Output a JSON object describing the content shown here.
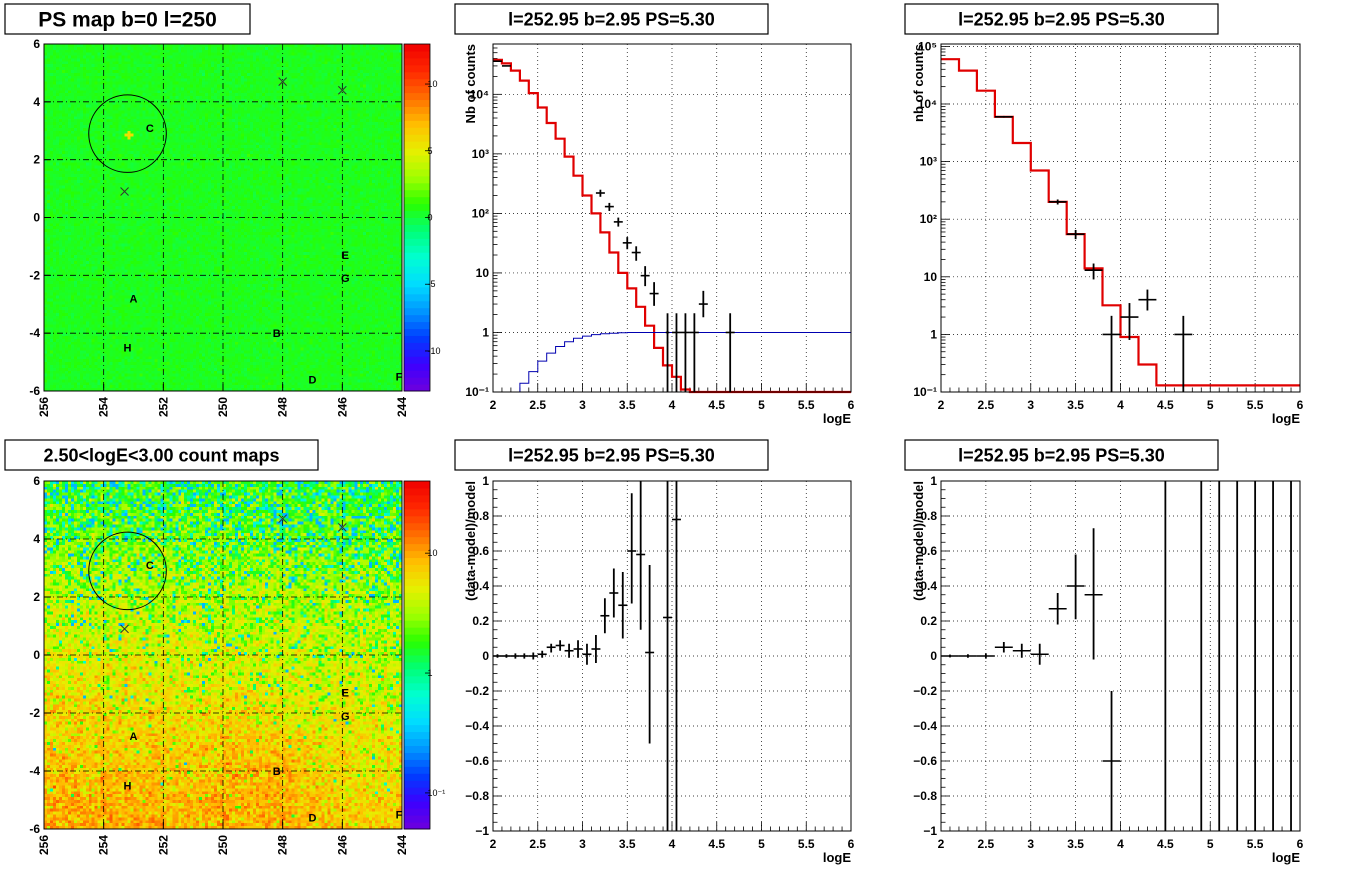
{
  "chart_data": [
    {
      "id": "ps_map",
      "type": "heatmap",
      "title": "PS map b=0 l=250",
      "x_ticks": [
        "256",
        "254",
        "252",
        "250",
        "248",
        "246",
        "244"
      ],
      "y_ticks": [
        "6",
        "4",
        "2",
        "0",
        "-2",
        "-4",
        "-6"
      ],
      "xlim": [
        256,
        244
      ],
      "ylim": [
        -6,
        6
      ],
      "grid": true,
      "colorbar_ticks": [
        "10",
        "5",
        "0",
        "-5",
        "-10"
      ],
      "colorbar_range": [
        -13,
        13
      ],
      "base_value": 0.5,
      "circle": {
        "l": 253.2,
        "b": 2.9,
        "r": 0.5
      },
      "crosses": [
        {
          "l": 248.0,
          "b": 4.7
        },
        {
          "l": 246.0,
          "b": 4.4
        },
        {
          "l": 253.3,
          "b": 0.9
        }
      ],
      "sources": [
        {
          "name": "C",
          "l": 252.45,
          "b": 3.1
        },
        {
          "name": "E",
          "l": 245.9,
          "b": -1.3
        },
        {
          "name": "G",
          "l": 245.9,
          "b": -2.1
        },
        {
          "name": "A",
          "l": 253.0,
          "b": -2.8
        },
        {
          "name": "B",
          "l": 248.2,
          "b": -4.0
        },
        {
          "name": "H",
          "l": 253.2,
          "b": -4.5
        },
        {
          "name": "D",
          "l": 247.0,
          "b": -5.6
        },
        {
          "name": "F",
          "l": 244.1,
          "b": -5.5
        }
      ]
    },
    {
      "id": "count_map",
      "type": "heatmap",
      "title": "2.50<logE<3.00 count maps",
      "x_ticks": [
        "256",
        "254",
        "252",
        "250",
        "248",
        "246",
        "244"
      ],
      "y_ticks": [
        "6",
        "4",
        "2",
        "0",
        "-2",
        "-4",
        "-6"
      ],
      "xlim": [
        256,
        244
      ],
      "ylim": [
        -6,
        6
      ],
      "grid": true,
      "colorbar_ticks": [
        "10",
        "1",
        "10⁻¹"
      ],
      "colorbar_log": true,
      "colorbar_range": [
        0.05,
        40
      ],
      "circle": {
        "l": 253.2,
        "b": 2.9,
        "r": 0.5
      },
      "crosses": [
        {
          "l": 248.0,
          "b": 4.7
        },
        {
          "l": 246.0,
          "b": 4.4
        },
        {
          "l": 253.3,
          "b": 0.9
        }
      ],
      "sources": [
        {
          "name": "C",
          "l": 252.45,
          "b": 3.1
        },
        {
          "name": "E",
          "l": 245.9,
          "b": -1.3
        },
        {
          "name": "G",
          "l": 245.9,
          "b": -2.1
        },
        {
          "name": "A",
          "l": 253.0,
          "b": -2.8
        },
        {
          "name": "B",
          "l": 248.2,
          "b": -4.0
        },
        {
          "name": "H",
          "l": 253.2,
          "b": -4.5
        },
        {
          "name": "D",
          "l": 247.0,
          "b": -5.6
        },
        {
          "name": "F",
          "l": 244.1,
          "b": -5.5
        }
      ]
    },
    {
      "id": "spec1",
      "type": "line",
      "title": "l=252.95 b=2.95 PS=5.30",
      "xlabel": "logE",
      "ylabel": "Nb of counts",
      "xlim": [
        2,
        6
      ],
      "ylog": true,
      "ylim": [
        0.1,
        70000
      ],
      "x_ticks": [
        "2",
        "2.5",
        "3",
        "3.5",
        "4",
        "4.5",
        "5",
        "5.5",
        "6"
      ],
      "y_ticks": [
        {
          "v": 0.1,
          "t": "10⁻¹"
        },
        {
          "v": 1,
          "t": "1"
        },
        {
          "v": 10,
          "t": "10"
        },
        {
          "v": 100,
          "t": "10²"
        },
        {
          "v": 1000,
          "t": "10³"
        },
        {
          "v": 10000,
          "t": "10⁴"
        }
      ],
      "grid": true,
      "series": [
        {
          "kind": "step",
          "color": "#e00000",
          "width": 2.2,
          "edges": [
            2,
            2.1,
            2.2,
            2.3,
            2.4,
            2.5,
            2.6,
            2.7,
            2.8,
            2.9,
            3.0,
            3.1,
            3.2,
            3.3,
            3.4,
            3.5,
            3.6,
            3.7,
            3.8,
            3.9,
            4.0,
            4.1,
            4.2,
            4.3,
            6.0
          ],
          "values": [
            38000,
            33000,
            25000,
            17000,
            10500,
            6000,
            3300,
            1800,
            900,
            430,
            200,
            100,
            48,
            22,
            10,
            5.5,
            2.7,
            1.3,
            0.55,
            0.28,
            0.18,
            0.11,
            0.1,
            0.1
          ]
        },
        {
          "kind": "step",
          "color": "#0000b0",
          "width": 1,
          "edges": [
            2,
            2.3,
            2.4,
            2.5,
            2.6,
            2.7,
            2.8,
            2.9,
            3.0,
            3.1,
            3.2,
            3.3,
            3.4,
            3.5,
            3.6,
            6.0
          ],
          "values": [
            0.1,
            0.14,
            0.22,
            0.33,
            0.45,
            0.58,
            0.7,
            0.8,
            0.87,
            0.92,
            0.95,
            0.97,
            0.99,
            1.0,
            1.0
          ]
        },
        {
          "kind": "errors",
          "color": "#000",
          "points": [
            {
              "x": 2.05,
              "xe": 0.05,
              "y": 36000,
              "lo": 35600,
              "hi": 36400
            },
            {
              "x": 2.15,
              "xe": 0.05,
              "y": 30000,
              "lo": 29600,
              "hi": 30400
            },
            {
              "x": 3.2,
              "xe": 0.05,
              "y": 220,
              "lo": 190,
              "hi": 250
            },
            {
              "x": 3.3,
              "xe": 0.05,
              "y": 130,
              "lo": 110,
              "hi": 150
            },
            {
              "x": 3.4,
              "xe": 0.05,
              "y": 72,
              "lo": 60,
              "hi": 85
            },
            {
              "x": 3.5,
              "xe": 0.05,
              "y": 32,
              "lo": 25,
              "hi": 40
            },
            {
              "x": 3.6,
              "xe": 0.05,
              "y": 22,
              "lo": 16,
              "hi": 28
            },
            {
              "x": 3.7,
              "xe": 0.05,
              "y": 9,
              "lo": 6,
              "hi": 13
            },
            {
              "x": 3.8,
              "xe": 0.05,
              "y": 4.5,
              "lo": 2.8,
              "hi": 7
            },
            {
              "x": 3.95,
              "xe": 0.02,
              "y": 1,
              "lo": 0.1,
              "hi": 2.1
            },
            {
              "x": 4.05,
              "xe": 0.05,
              "y": 1,
              "lo": 0.1,
              "hi": 2.1
            },
            {
              "x": 4.15,
              "xe": 0.05,
              "y": 1,
              "lo": 0.1,
              "hi": 2.1
            },
            {
              "x": 4.25,
              "xe": 0.05,
              "y": 1,
              "lo": 0.1,
              "hi": 2.1
            },
            {
              "x": 4.35,
              "xe": 0.05,
              "y": 3,
              "lo": 1.8,
              "hi": 5
            },
            {
              "x": 4.65,
              "xe": 0.05,
              "y": 1,
              "lo": 0.1,
              "hi": 2.1
            }
          ]
        }
      ]
    },
    {
      "id": "spec2",
      "type": "line",
      "title": "l=252.95 b=2.95 PS=5.30",
      "xlabel": "logE",
      "ylabel": "nb of counts",
      "xlim": [
        2,
        6
      ],
      "ylog": true,
      "ylim": [
        0.1,
        110000
      ],
      "x_ticks": [
        "2",
        "2.5",
        "3",
        "3.5",
        "4",
        "4.5",
        "5",
        "5.5",
        "6"
      ],
      "y_ticks": [
        {
          "v": 0.1,
          "t": "10⁻¹"
        },
        {
          "v": 1,
          "t": "1"
        },
        {
          "v": 10,
          "t": "10"
        },
        {
          "v": 100,
          "t": "10²"
        },
        {
          "v": 1000,
          "t": "10³"
        },
        {
          "v": 10000,
          "t": "10⁴"
        },
        {
          "v": 100000,
          "t": "10⁵"
        }
      ],
      "grid": true,
      "series": [
        {
          "kind": "step",
          "color": "#e00000",
          "width": 2.2,
          "edges": [
            2,
            2.2,
            2.4,
            2.6,
            2.8,
            3.0,
            3.2,
            3.4,
            3.6,
            3.8,
            4.0,
            4.2,
            4.4,
            6.0
          ],
          "values": [
            60000,
            38000,
            17000,
            6000,
            2100,
            700,
            200,
            55,
            14,
            3.2,
            0.9,
            0.3,
            0.13
          ]
        },
        {
          "kind": "errors",
          "color": "#000",
          "points": [
            {
              "x": 2.7,
              "xe": 0.1,
              "y": 6000,
              "lo": 5800,
              "hi": 6200
            },
            {
              "x": 3.3,
              "xe": 0.1,
              "y": 200,
              "lo": 180,
              "hi": 220
            },
            {
              "x": 3.5,
              "xe": 0.1,
              "y": 55,
              "lo": 45,
              "hi": 65
            },
            {
              "x": 3.7,
              "xe": 0.1,
              "y": 13,
              "lo": 9,
              "hi": 17
            },
            {
              "x": 3.9,
              "xe": 0.1,
              "y": 1,
              "lo": 0.1,
              "hi": 2.1
            },
            {
              "x": 4.1,
              "xe": 0.1,
              "y": 2,
              "lo": 0.8,
              "hi": 3.5
            },
            {
              "x": 4.3,
              "xe": 0.1,
              "y": 4,
              "lo": 2.6,
              "hi": 6
            },
            {
              "x": 4.7,
              "xe": 0.1,
              "y": 1,
              "lo": 0.1,
              "hi": 2.1
            }
          ]
        }
      ]
    },
    {
      "id": "ratio1",
      "type": "scatter",
      "title": "l=252.95 b=2.95 PS=5.30",
      "xlabel": "logE",
      "ylabel": "(data-model)/model",
      "xlim": [
        2,
        6
      ],
      "ylim": [
        -1,
        1
      ],
      "x_ticks": [
        "2",
        "2.5",
        "3",
        "3.5",
        "4",
        "4.5",
        "5",
        "5.5",
        "6"
      ],
      "y_ticks": [
        {
          "v": -1,
          "t": "−1"
        },
        {
          "v": -0.8,
          "t": "−0.8"
        },
        {
          "v": -0.6,
          "t": "−0.6"
        },
        {
          "v": -0.4,
          "t": "−0.4"
        },
        {
          "v": -0.2,
          "t": "−0.2"
        },
        {
          "v": 0,
          "t": "0"
        },
        {
          "v": 0.2,
          "t": "0.2"
        },
        {
          "v": 0.4,
          "t": "0.4"
        },
        {
          "v": 0.6,
          "t": "0.6"
        },
        {
          "v": 0.8,
          "t": "0.8"
        },
        {
          "v": 1,
          "t": "1"
        }
      ],
      "grid": true,
      "series": [
        {
          "kind": "errors",
          "color": "#000",
          "points": [
            {
              "x": 2.05,
              "xe": 0.05,
              "y": 0,
              "lo": -0.01,
              "hi": 0.01
            },
            {
              "x": 2.15,
              "xe": 0.05,
              "y": 0,
              "lo": -0.01,
              "hi": 0.01
            },
            {
              "x": 2.25,
              "xe": 0.05,
              "y": 0,
              "lo": -0.015,
              "hi": 0.015
            },
            {
              "x": 2.35,
              "xe": 0.05,
              "y": 0,
              "lo": -0.015,
              "hi": 0.015
            },
            {
              "x": 2.45,
              "xe": 0.05,
              "y": 0,
              "lo": -0.02,
              "hi": 0.02
            },
            {
              "x": 2.55,
              "xe": 0.05,
              "y": 0.01,
              "lo": -0.01,
              "hi": 0.03
            },
            {
              "x": 2.65,
              "xe": 0.05,
              "y": 0.05,
              "lo": 0.02,
              "hi": 0.07
            },
            {
              "x": 2.75,
              "xe": 0.05,
              "y": 0.06,
              "lo": 0.03,
              "hi": 0.09
            },
            {
              "x": 2.85,
              "xe": 0.05,
              "y": 0.03,
              "lo": -0.01,
              "hi": 0.07
            },
            {
              "x": 2.95,
              "xe": 0.05,
              "y": 0.04,
              "lo": -0.01,
              "hi": 0.09
            },
            {
              "x": 3.05,
              "xe": 0.05,
              "y": 0.01,
              "lo": -0.05,
              "hi": 0.07
            },
            {
              "x": 3.15,
              "xe": 0.05,
              "y": 0.04,
              "lo": -0.04,
              "hi": 0.12
            },
            {
              "x": 3.25,
              "xe": 0.05,
              "y": 0.23,
              "lo": 0.13,
              "hi": 0.33
            },
            {
              "x": 3.35,
              "xe": 0.05,
              "y": 0.36,
              "lo": 0.22,
              "hi": 0.5
            },
            {
              "x": 3.45,
              "xe": 0.05,
              "y": 0.29,
              "lo": 0.1,
              "hi": 0.48
            },
            {
              "x": 3.55,
              "xe": 0.05,
              "y": 0.6,
              "lo": 0.3,
              "hi": 0.93
            },
            {
              "x": 3.65,
              "xe": 0.05,
              "y": 0.58,
              "lo": 0.15,
              "hi": 1.0
            },
            {
              "x": 3.75,
              "xe": 0.05,
              "y": 0.02,
              "lo": -0.5,
              "hi": 0.52
            },
            {
              "x": 3.95,
              "xe": 0.05,
              "y": 0.22,
              "lo": -1.0,
              "hi": 1.0
            },
            {
              "x": 4.05,
              "xe": 0.05,
              "y": 0.78,
              "lo": -1.0,
              "hi": 1.0
            }
          ]
        }
      ]
    },
    {
      "id": "ratio2",
      "type": "scatter",
      "title": "l=252.95 b=2.95 PS=5.30",
      "xlabel": "logE",
      "ylabel": "(data-model)/model",
      "xlim": [
        2,
        6
      ],
      "ylim": [
        -1,
        1
      ],
      "x_ticks": [
        "2",
        "2.5",
        "3",
        "3.5",
        "4",
        "4.5",
        "5",
        "5.5",
        "6"
      ],
      "y_ticks": [
        {
          "v": -1,
          "t": "−1"
        },
        {
          "v": -0.8,
          "t": "−0.8"
        },
        {
          "v": -0.6,
          "t": "−0.6"
        },
        {
          "v": -0.4,
          "t": "−0.4"
        },
        {
          "v": -0.2,
          "t": "−0.2"
        },
        {
          "v": 0,
          "t": "0"
        },
        {
          "v": 0.2,
          "t": "0.2"
        },
        {
          "v": 0.4,
          "t": "0.4"
        },
        {
          "v": 0.6,
          "t": "0.6"
        },
        {
          "v": 0.8,
          "t": "0.8"
        },
        {
          "v": 1,
          "t": "1"
        }
      ],
      "grid": true,
      "series": [
        {
          "kind": "errors",
          "color": "#000",
          "points": [
            {
              "x": 2.1,
              "xe": 0.1,
              "y": 0,
              "lo": -0.008,
              "hi": 0.008
            },
            {
              "x": 2.3,
              "xe": 0.1,
              "y": 0,
              "lo": -0.01,
              "hi": 0.01
            },
            {
              "x": 2.5,
              "xe": 0.1,
              "y": 0,
              "lo": -0.015,
              "hi": 0.015
            },
            {
              "x": 2.7,
              "xe": 0.1,
              "y": 0.05,
              "lo": 0.02,
              "hi": 0.08
            },
            {
              "x": 2.9,
              "xe": 0.1,
              "y": 0.03,
              "lo": -0.01,
              "hi": 0.07
            },
            {
              "x": 3.1,
              "xe": 0.1,
              "y": 0.01,
              "lo": -0.05,
              "hi": 0.07
            },
            {
              "x": 3.3,
              "xe": 0.1,
              "y": 0.27,
              "lo": 0.18,
              "hi": 0.36
            },
            {
              "x": 3.5,
              "xe": 0.1,
              "y": 0.4,
              "lo": 0.21,
              "hi": 0.58
            },
            {
              "x": 3.7,
              "xe": 0.1,
              "y": 0.35,
              "lo": -0.02,
              "hi": 0.73
            },
            {
              "x": 3.9,
              "xe": 0.1,
              "y": -0.6,
              "lo": -1.0,
              "hi": -0.2
            },
            {
              "x": 4.5,
              "xe": 0.0,
              "y": 0,
              "lo": -1.0,
              "hi": 1.0
            },
            {
              "x": 4.9,
              "xe": 0.0,
              "y": 0,
              "lo": -1.0,
              "hi": 1.0
            },
            {
              "x": 5.1,
              "xe": 0.0,
              "y": 0,
              "lo": -1.0,
              "hi": 1.0
            },
            {
              "x": 5.3,
              "xe": 0.0,
              "y": 0,
              "lo": -1.0,
              "hi": 1.0
            },
            {
              "x": 5.5,
              "xe": 0.0,
              "y": 0,
              "lo": -1.0,
              "hi": 1.0
            },
            {
              "x": 5.7,
              "xe": 0.0,
              "y": 0,
              "lo": -1.0,
              "hi": 1.0
            },
            {
              "x": 5.9,
              "xe": 0.0,
              "y": 0,
              "lo": -1.0,
              "hi": 1.0
            }
          ]
        }
      ]
    }
  ]
}
